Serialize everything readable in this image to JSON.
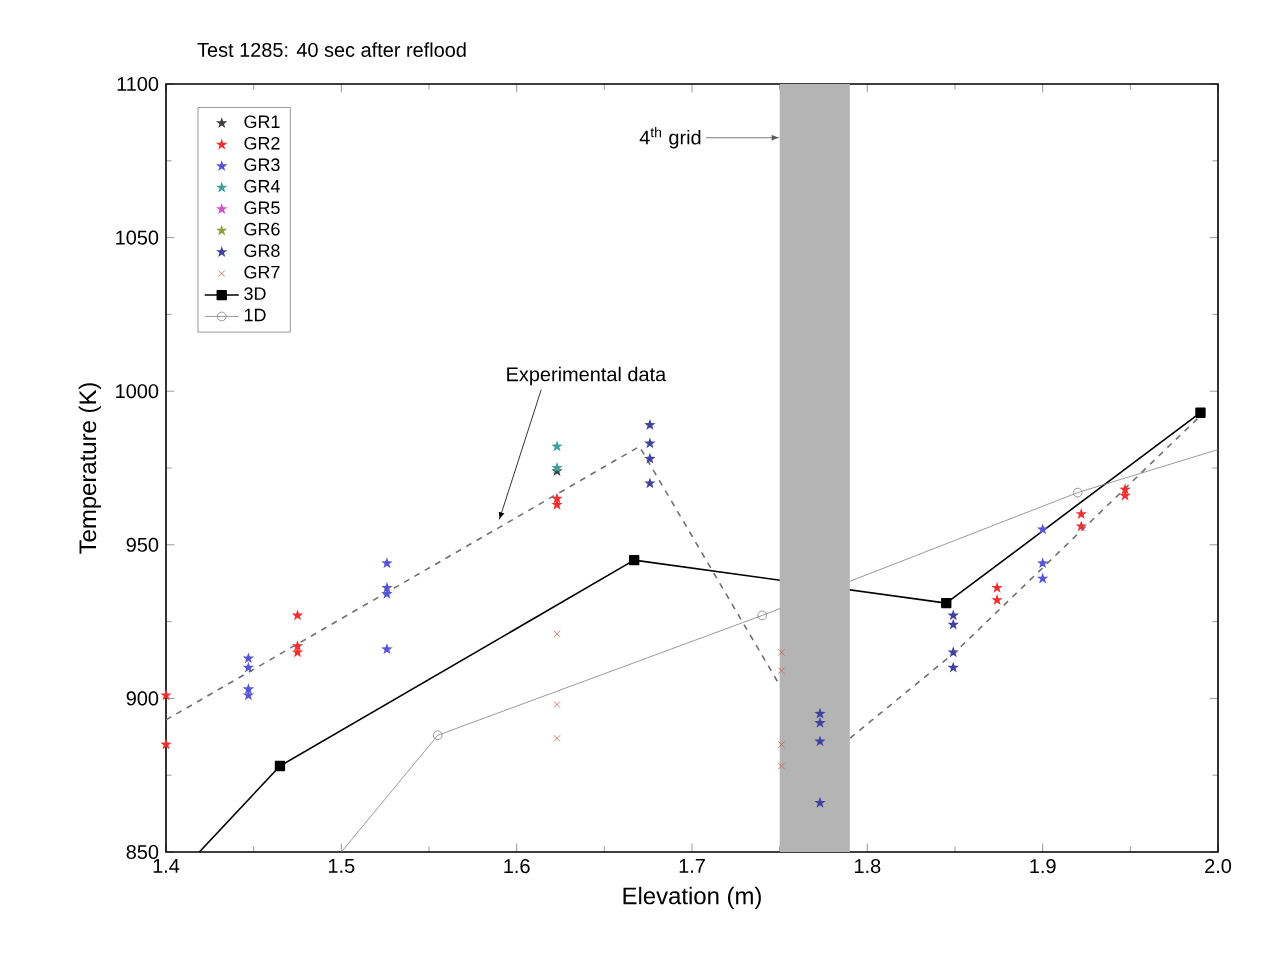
{
  "chart_data": {
    "type": "scatter",
    "title": "Test 1285: 40 sec after reflood",
    "xlabel": "Elevation (m)",
    "ylabel": "Temperature (K)",
    "xlim": [
      1.4,
      2.0
    ],
    "ylim": [
      850,
      1100
    ],
    "xticks": [
      1.4,
      1.5,
      1.6,
      1.7,
      1.8,
      1.9,
      {
        "value": 2.0,
        "label": "2.0"
      }
    ],
    "yticks": [
      850,
      900,
      950,
      1000,
      1050,
      1100
    ],
    "legend": "top left",
    "marker": "star",
    "series": [
      {
        "name": "GR1",
        "color": "#404040",
        "x": [
          1.623
        ],
        "values": [
          974
        ]
      },
      {
        "name": "GR2",
        "color": "#f03030",
        "x": [
          1.4,
          1.4,
          1.475,
          1.475,
          1.475,
          1.623,
          1.623,
          1.874,
          1.874,
          1.922,
          1.922,
          1.947,
          1.947
        ],
        "values": [
          901,
          885,
          927,
          917,
          915,
          965,
          963,
          936,
          932,
          960,
          956,
          968,
          966
        ]
      },
      {
        "name": "GR3",
        "color": "#5555d5",
        "x": [
          1.447,
          1.447,
          1.447,
          1.447,
          1.526,
          1.526,
          1.526,
          1.526,
          1.9,
          1.9,
          1.9
        ],
        "values": [
          913,
          910,
          903,
          901,
          944,
          936,
          934,
          916,
          955,
          944,
          939
        ]
      },
      {
        "name": "GR4",
        "color": "#40a0a0",
        "x": [
          1.623,
          1.623
        ],
        "values": [
          982,
          975
        ]
      },
      {
        "name": "GR5",
        "color": "#d050d0"
      },
      {
        "name": "GR6",
        "color": "#90a040"
      },
      {
        "name": "GR8",
        "color": "#4040a0",
        "x": [
          1.676,
          1.676,
          1.676,
          1.676,
          1.773,
          1.773,
          1.773,
          1.773,
          1.849,
          1.849,
          1.849,
          1.849
        ],
        "values": [
          989,
          983,
          978,
          970,
          895,
          892,
          886,
          866,
          927,
          924,
          915,
          910
        ]
      },
      {
        "name": "GR7",
        "color": "#c06050",
        "marker": "cross",
        "x": [
          1.623,
          1.623,
          1.623,
          1.751,
          1.751,
          1.751,
          1.751
        ],
        "values": [
          921,
          898,
          887,
          915,
          909,
          885,
          878
        ]
      },
      {
        "name": "3D",
        "type": "line",
        "color": "#000000",
        "marker": "square",
        "line_style": "solid",
        "x": [
          1.419,
          1.465,
          1.667,
          1.845,
          1.99
        ],
        "values": [
          850,
          878,
          945,
          931,
          993
        ]
      },
      {
        "name": "1D",
        "type": "line",
        "color": "#808080",
        "marker": "circle",
        "line_style": "solid",
        "x": [
          1.5,
          1.555,
          1.74,
          1.92,
          2.0
        ],
        "values": [
          850,
          888,
          927,
          967,
          981
        ]
      },
      {
        "type": "line",
        "color": "#707070",
        "marker": "none",
        "line_style": "dashed",
        "x": [
          1.4,
          1.67,
          1.775,
          1.85,
          1.99
        ],
        "values": [
          893,
          982,
          880,
          915,
          992
        ]
      }
    ],
    "bands": [
      {
        "axis": "x",
        "from": 1.75,
        "to": 1.79,
        "label": "4$^{th}$ grid",
        "color": "#b4b4b4"
      }
    ],
    "annotations": [
      {
        "text": "Experimental data",
        "x": 1.59,
        "y": 958
      }
    ]
  }
}
